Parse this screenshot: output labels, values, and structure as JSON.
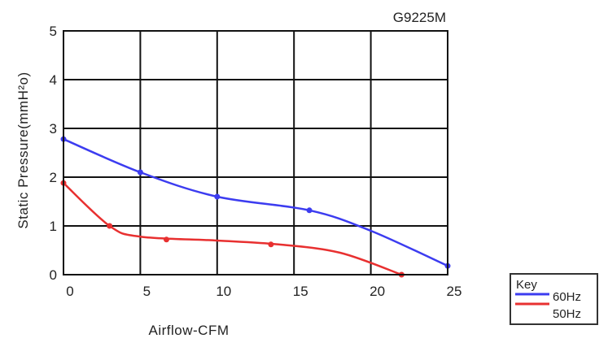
{
  "chart_data": {
    "type": "line",
    "title": "G9225M",
    "xlabel": "Airflow-CFM",
    "ylabel": "Static Pressure(mmH²o)",
    "xlim": [
      0,
      25
    ],
    "ylim": [
      0,
      5
    ],
    "x_ticks": [
      "0",
      "5",
      "10",
      "15",
      "20",
      "25"
    ],
    "y_ticks": [
      "0",
      "1",
      "2",
      "3",
      "4",
      "5"
    ],
    "grid": true,
    "legend": {
      "title": "Key",
      "placement": "bottom-right-outside"
    },
    "series": [
      {
        "name": "60Hz",
        "color": "#3c3cf0",
        "points": [
          [
            0,
            2.78
          ],
          [
            5,
            2.1
          ],
          [
            10,
            1.6
          ],
          [
            16,
            1.32
          ],
          [
            20,
            0.9
          ],
          [
            25,
            0.18
          ]
        ],
        "markers": [
          [
            0,
            2.78
          ],
          [
            5,
            2.1
          ],
          [
            10,
            1.6
          ],
          [
            16,
            1.32
          ],
          [
            25,
            0.18
          ]
        ]
      },
      {
        "name": "50Hz",
        "color": "#e83030",
        "points": [
          [
            0,
            1.88
          ],
          [
            3,
            1.0
          ],
          [
            5,
            0.78
          ],
          [
            10,
            0.7
          ],
          [
            14,
            0.62
          ],
          [
            18,
            0.45
          ],
          [
            22,
            0.0
          ]
        ],
        "markers": [
          [
            0,
            1.88
          ],
          [
            3,
            1.0
          ],
          [
            6.7,
            0.72
          ],
          [
            13.5,
            0.62
          ],
          [
            22,
            0.0
          ]
        ]
      }
    ]
  }
}
